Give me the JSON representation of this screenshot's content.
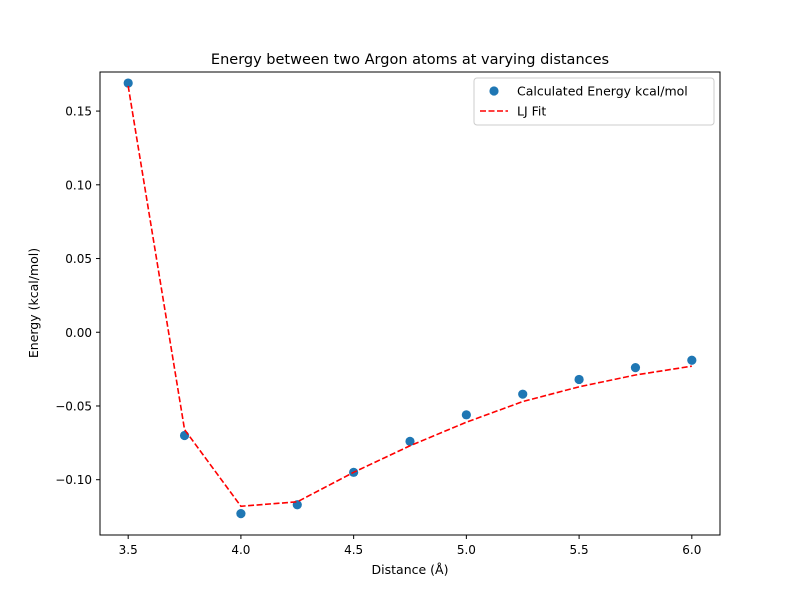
{
  "chart_data": {
    "type": "scatter",
    "title": "Energy between two Argon atoms at varying distances",
    "xlabel": "Distance (Å)",
    "ylabel": "Energy (kcal/mol)",
    "xlim": [
      3.375,
      6.125
    ],
    "ylim": [
      -0.1375,
      0.1765
    ],
    "xticks": [
      3.5,
      4.0,
      4.5,
      5.0,
      5.5,
      6.0
    ],
    "xtick_labels": [
      "3.5",
      "4.0",
      "4.5",
      "5.0",
      "5.5",
      "6.0"
    ],
    "yticks": [
      -0.1,
      -0.05,
      0.0,
      0.05,
      0.1,
      0.15
    ],
    "ytick_labels": [
      "−0.10",
      "−0.05",
      "0.00",
      "0.05",
      "0.10",
      "0.15"
    ],
    "grid": false,
    "legend_position": "top-right",
    "series": [
      {
        "name": "Calculated Energy kcal/mol",
        "kind": "scatter",
        "color": "#1f77b4",
        "x": [
          3.5,
          3.75,
          4.0,
          4.25,
          4.5,
          4.75,
          5.0,
          5.25,
          5.5,
          5.75,
          6.0
        ],
        "y": [
          0.169,
          -0.07,
          -0.123,
          -0.117,
          -0.095,
          -0.074,
          -0.056,
          -0.042,
          -0.032,
          -0.024,
          -0.019
        ]
      },
      {
        "name": "LJ Fit",
        "kind": "line",
        "style": "dashed",
        "color": "#ff0000",
        "x": [
          3.5,
          3.75,
          4.0,
          4.25,
          4.5,
          4.75,
          5.0,
          5.25,
          5.5,
          5.75,
          6.0
        ],
        "y": [
          0.167,
          -0.066,
          -0.118,
          -0.115,
          -0.095,
          -0.077,
          -0.061,
          -0.047,
          -0.037,
          -0.029,
          -0.023
        ]
      }
    ]
  }
}
